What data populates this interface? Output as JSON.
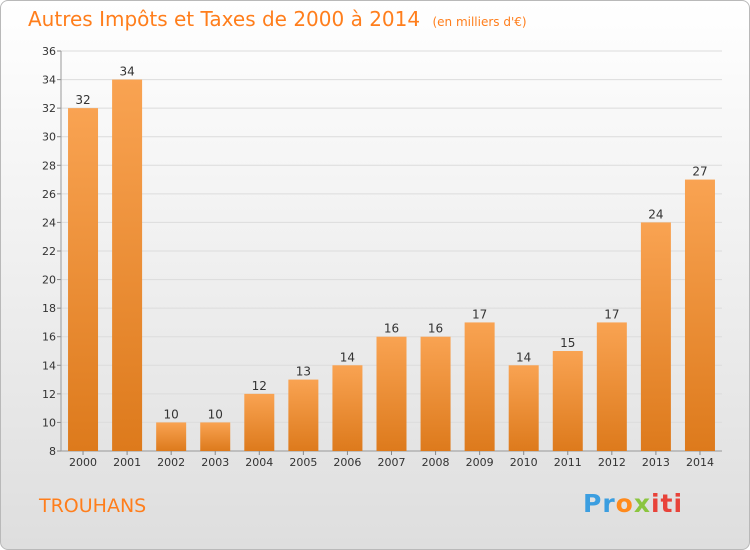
{
  "title": "Autres Impôts et Taxes de 2000 à 2014",
  "subtitle": "(en milliers d'€)",
  "place": "TROUHANS",
  "logo": {
    "p1": "Pr",
    "p2": "o",
    "p3": "x",
    "p4": "iti"
  },
  "colors": {
    "accent": "#ff7e1c",
    "bar_light": "#f9a352",
    "bar_dark": "#dd7a1c"
  },
  "chart_data": {
    "type": "bar",
    "categories": [
      "2000",
      "2001",
      "2002",
      "2003",
      "2004",
      "2005",
      "2006",
      "2007",
      "2008",
      "2009",
      "2010",
      "2011",
      "2012",
      "2013",
      "2014"
    ],
    "values": [
      32,
      34,
      10,
      10,
      12,
      13,
      14,
      16,
      16,
      17,
      14,
      15,
      17,
      24,
      27
    ],
    "ylim": [
      8,
      36
    ],
    "yticks": [
      8,
      10,
      12,
      14,
      16,
      18,
      20,
      22,
      24,
      26,
      28,
      30,
      32,
      34,
      36
    ],
    "grid": true,
    "data_labels": true
  }
}
